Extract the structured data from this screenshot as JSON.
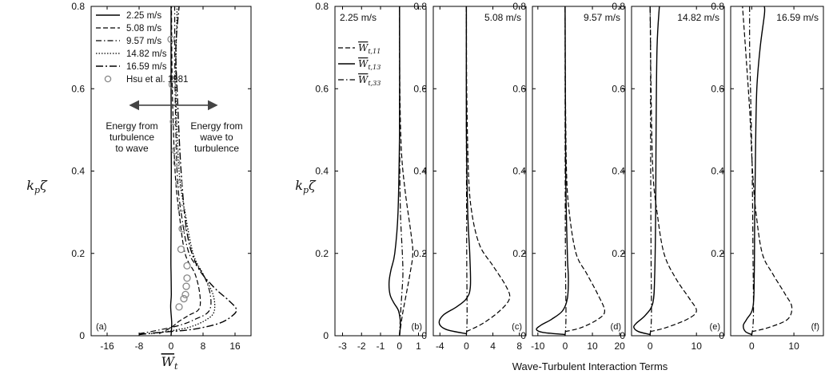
{
  "chart_data": [
    {
      "panel_label": "(a)",
      "type": "line",
      "ylabel": "k_pζ",
      "xlabel": "W̅_t",
      "xlim": [
        -20,
        20
      ],
      "ylim": [
        0,
        0.8
      ],
      "xticks": [
        -16,
        -8,
        0,
        8,
        16
      ],
      "yticks": [
        0,
        0.2,
        0.4,
        0.6,
        0.8
      ],
      "annotations": [
        "Energy from",
        "turbulence",
        "to wave",
        "Energy from",
        "wave to",
        "turbulence"
      ],
      "series": [
        {
          "name": "2.25 m/s",
          "style": "solid",
          "x": [
            0.0,
            0.15,
            -0.1,
            0.05,
            0.0,
            -0.05,
            0.05,
            0.0,
            0.0
          ],
          "y": [
            0.0,
            0.03,
            0.07,
            0.1,
            0.15,
            0.2,
            0.4,
            0.6,
            0.8
          ]
        },
        {
          "name": "5.08 m/s",
          "style": "dashed",
          "x": [
            -3,
            0,
            2,
            4.5,
            7,
            7.2,
            6,
            3.5,
            2,
            1,
            0.3,
            0.1
          ],
          "y": [
            0.005,
            0.02,
            0.035,
            0.05,
            0.065,
            0.1,
            0.15,
            0.2,
            0.3,
            0.4,
            0.6,
            0.8
          ]
        },
        {
          "name": "9.57 m/s",
          "style": "dashdot",
          "x": [
            -8,
            -4,
            2,
            6,
            9.5,
            9.8,
            8,
            4.5,
            2.5,
            1.5,
            1.0,
            0.9
          ],
          "y": [
            0.005,
            0.012,
            0.025,
            0.04,
            0.06,
            0.1,
            0.15,
            0.2,
            0.3,
            0.4,
            0.6,
            0.8
          ]
        },
        {
          "name": "14.82 m/s",
          "style": "dotted",
          "x": [
            -5,
            0,
            5,
            9,
            10.8,
            10.5,
            8,
            5.5,
            3.5,
            2,
            1.2,
            1.5
          ],
          "y": [
            0.005,
            0.012,
            0.022,
            0.04,
            0.06,
            0.1,
            0.15,
            0.2,
            0.3,
            0.4,
            0.6,
            0.8
          ]
        },
        {
          "name": "16.59 m/s",
          "style": "dashdot-heavy",
          "x": [
            -8,
            -3,
            5,
            12,
            15.5,
            16.3,
            14.5,
            10.5,
            6.5,
            4,
            2.5,
            1.5,
            1.2,
            2.0
          ],
          "y": [
            0.003,
            0.008,
            0.015,
            0.03,
            0.05,
            0.065,
            0.085,
            0.12,
            0.17,
            0.25,
            0.4,
            0.6,
            0.7,
            0.8
          ]
        },
        {
          "name": "Hsu et al. 1981",
          "style": "circles",
          "x": [
            0.0,
            0.3,
            0.6,
            1.0,
            1.4,
            2.0,
            2.5,
            2.8,
            2.5,
            4.0,
            4.0,
            3.8,
            3.6,
            3.2,
            2.0
          ],
          "y": [
            0.72,
            0.61,
            0.52,
            0.45,
            0.42,
            0.37,
            0.31,
            0.26,
            0.21,
            0.17,
            0.14,
            0.12,
            0.1,
            0.09,
            0.07
          ]
        }
      ]
    },
    {
      "panel_label": "(b)",
      "title": "2.25 m/s",
      "type": "line",
      "xlim": [
        -3.4,
        1.4
      ],
      "ylim": [
        0,
        0.8
      ],
      "xticks": [
        -3,
        -2,
        -1,
        0,
        1
      ],
      "yticks": [
        0,
        0.2,
        0.4,
        0.6,
        0.8
      ],
      "legend": [
        "W̅_t,11",
        "W̅_t,13",
        "W̅_t,33"
      ],
      "series": [
        {
          "name": "W̅_t,11",
          "style": "dashed",
          "x": [
            0,
            0.15,
            0.35,
            0.55,
            0.7,
            0.6,
            0.3,
            0.1,
            0.02,
            0
          ],
          "y": [
            0,
            0.05,
            0.1,
            0.15,
            0.2,
            0.25,
            0.35,
            0.45,
            0.6,
            0.8
          ]
        },
        {
          "name": "W̅_t,13",
          "style": "solid",
          "x": [
            0,
            0.05,
            -0.05,
            -0.3,
            -0.5,
            -0.55,
            -0.45,
            -0.25,
            -0.08,
            0,
            0
          ],
          "y": [
            0,
            0.03,
            0.06,
            0.08,
            0.1,
            0.13,
            0.16,
            0.2,
            0.3,
            0.5,
            0.8
          ]
        },
        {
          "name": "W̅_t,33",
          "style": "dashdot",
          "x": [
            0,
            0.05,
            0.12,
            0.18,
            0.15,
            0.05,
            0.01,
            0
          ],
          "y": [
            0,
            0.05,
            0.1,
            0.15,
            0.2,
            0.3,
            0.45,
            0.8
          ]
        }
      ]
    },
    {
      "panel_label": "(c)",
      "title": "5.08 m/s",
      "type": "line",
      "xlim": [
        -5,
        9
      ],
      "ylim": [
        0,
        0.8
      ],
      "xticks": [
        -4,
        0,
        4,
        8
      ],
      "yticks": [
        0,
        0.2,
        0.4,
        0.6,
        0.8
      ],
      "series": [
        {
          "name": "W̅_t,11",
          "style": "dashed",
          "x": [
            0,
            2.5,
            5,
            6.5,
            6,
            4,
            2,
            0.8,
            0.3,
            0.05,
            0
          ],
          "y": [
            0.01,
            0.03,
            0.06,
            0.09,
            0.12,
            0.17,
            0.22,
            0.3,
            0.4,
            0.6,
            0.8
          ]
        },
        {
          "name": "W̅_t,13",
          "style": "solid",
          "x": [
            0,
            -3,
            -4.1,
            -3.5,
            -1.5,
            0,
            0.6,
            0.5,
            0.2,
            0,
            0
          ],
          "y": [
            0.005,
            0.015,
            0.03,
            0.05,
            0.07,
            0.09,
            0.12,
            0.2,
            0.3,
            0.5,
            0.8
          ]
        },
        {
          "name": "W̅_t,33",
          "style": "dashdot",
          "x": [
            0,
            0.1,
            0.05,
            0,
            0
          ],
          "y": [
            0,
            0.05,
            0.2,
            0.5,
            0.8
          ]
        }
      ]
    },
    {
      "panel_label": "(d)",
      "title": "9.57 m/s",
      "type": "line",
      "xlim": [
        -12,
        22
      ],
      "ylim": [
        0,
        0.8
      ],
      "xticks": [
        -10,
        0,
        10,
        20
      ],
      "yticks": [
        0,
        0.2,
        0.4,
        0.6,
        0.8
      ],
      "series": [
        {
          "name": "W̅_t,11",
          "style": "dashed",
          "x": [
            0,
            6,
            12,
            14.5,
            12,
            8,
            4,
            1.5,
            0.5,
            0.1,
            0
          ],
          "y": [
            0.01,
            0.02,
            0.04,
            0.06,
            0.1,
            0.15,
            0.2,
            0.3,
            0.4,
            0.6,
            0.8
          ]
        },
        {
          "name": "W̅_t,13",
          "style": "solid",
          "x": [
            0,
            -8,
            -10.5,
            -9,
            -5,
            -1,
            0.8,
            1.2,
            0.8,
            0.2,
            0
          ],
          "y": [
            0.003,
            0.008,
            0.015,
            0.025,
            0.04,
            0.06,
            0.09,
            0.14,
            0.2,
            0.4,
            0.8
          ]
        },
        {
          "name": "W̅_t,33",
          "style": "dashdot",
          "x": [
            0,
            0.3,
            0.1,
            0,
            0
          ],
          "y": [
            0,
            0.05,
            0.2,
            0.5,
            0.8
          ]
        }
      ]
    },
    {
      "panel_label": "(e)",
      "title": "14.82 m/s",
      "type": "line",
      "xlim": [
        -4,
        16
      ],
      "ylim": [
        0,
        0.8
      ],
      "xticks": [
        0,
        10
      ],
      "yticks": [
        0,
        0.2,
        0.4,
        0.6,
        0.8
      ],
      "series": [
        {
          "name": "W̅_t,11",
          "style": "dashed",
          "x": [
            0,
            3.5,
            8,
            10,
            8.5,
            5.5,
            3,
            1.5,
            0.6,
            0.2,
            0
          ],
          "y": [
            0.01,
            0.02,
            0.04,
            0.06,
            0.09,
            0.14,
            0.2,
            0.3,
            0.4,
            0.6,
            0.8
          ]
        },
        {
          "name": "W̅_t,13",
          "style": "solid",
          "x": [
            0,
            -2.5,
            -3.5,
            -3,
            -1,
            0.6,
            1.0,
            1.2,
            1.3,
            1.5,
            2.0
          ],
          "y": [
            0.003,
            0.01,
            0.02,
            0.03,
            0.05,
            0.08,
            0.15,
            0.3,
            0.5,
            0.7,
            0.8
          ]
        },
        {
          "name": "W̅_t,33",
          "style": "dashdot",
          "x": [
            0,
            0.3,
            0.2,
            0.1,
            0.1,
            0
          ],
          "y": [
            0,
            0.05,
            0.2,
            0.5,
            0.7,
            0.8
          ]
        }
      ]
    },
    {
      "panel_label": "(f)",
      "title": "16.59 m/s",
      "type": "line",
      "xlim": [
        -5,
        17
      ],
      "ylim": [
        0,
        0.8
      ],
      "xticks": [
        0,
        10
      ],
      "yticks": [
        0,
        0.2,
        0.4,
        0.6,
        0.8
      ],
      "series": [
        {
          "name": "W̅_t,11",
          "style": "dashed",
          "x": [
            0,
            4,
            8.5,
            9.5,
            8,
            5,
            2.5,
            1,
            0.2,
            -0.5,
            -1.5,
            -2.2
          ],
          "y": [
            0.01,
            0.02,
            0.04,
            0.07,
            0.1,
            0.15,
            0.2,
            0.3,
            0.4,
            0.55,
            0.7,
            0.8
          ]
        },
        {
          "name": "W̅_t,13",
          "style": "solid",
          "x": [
            0,
            -1.5,
            -2,
            -1.2,
            0.3,
            0.6,
            0.7,
            0.9,
            1.2,
            2.0,
            3.0,
            3.0
          ],
          "y": [
            0.003,
            0.01,
            0.025,
            0.04,
            0.07,
            0.15,
            0.3,
            0.45,
            0.6,
            0.7,
            0.78,
            0.8
          ]
        },
        {
          "name": "W̅_t,33",
          "style": "dashdot",
          "x": [
            0,
            0.4,
            0.3,
            0.1,
            -0.3,
            -0.5,
            -0.5
          ],
          "y": [
            0,
            0.05,
            0.2,
            0.4,
            0.6,
            0.7,
            0.8
          ]
        }
      ]
    }
  ],
  "shared_xlabel": "Wave-Turbulent Interaction Terms",
  "shared_ylabel": "k_pζ"
}
